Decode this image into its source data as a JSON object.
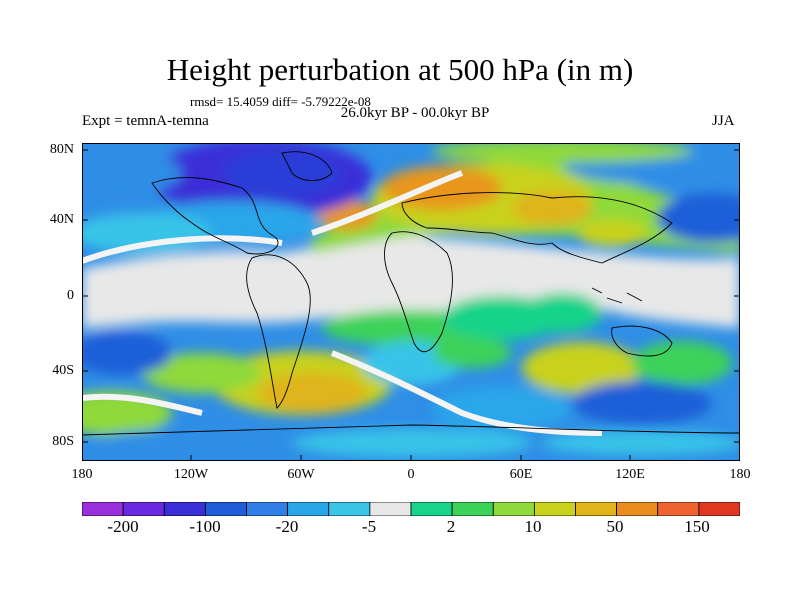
{
  "title": "Height perturbation at 500 hPa (in m)",
  "stats_line": "rmsd= 15.4059 diff= -5.79222e-08",
  "period": "26.0kyr BP - 00.0kyr BP",
  "experiment": "Expt = temnA-temna",
  "season": "JJA",
  "lat_labels": [
    "80N",
    "40N",
    "0",
    "40S",
    "80S"
  ],
  "lon_labels": [
    "180",
    "120W",
    "60W",
    "0",
    "60E",
    "120E",
    "180"
  ],
  "colorbar": {
    "labels": [
      "-200",
      "-100",
      "-20",
      "-5",
      "2",
      "10",
      "50",
      "150"
    ],
    "colors": [
      "#9a2fdc",
      "#6a28e0",
      "#3a2ed8",
      "#1f5ed8",
      "#2f7fe6",
      "#29a6ea",
      "#39c4e8",
      "#e8e8e8",
      "#18d38a",
      "#3cd25a",
      "#8fd93a",
      "#c8d21c",
      "#e0b41a",
      "#eb8c1e",
      "#ee6430",
      "#e03820"
    ]
  },
  "palette": {
    "deep_blue": "#2b3ed6",
    "blue": "#2f8ee6",
    "light_blue": "#3dbce8",
    "neutral": "#e8e8e8",
    "teal": "#18d38a",
    "green": "#4fd24a",
    "yellow": "#c8d21c",
    "orange": "#e8961c"
  }
}
